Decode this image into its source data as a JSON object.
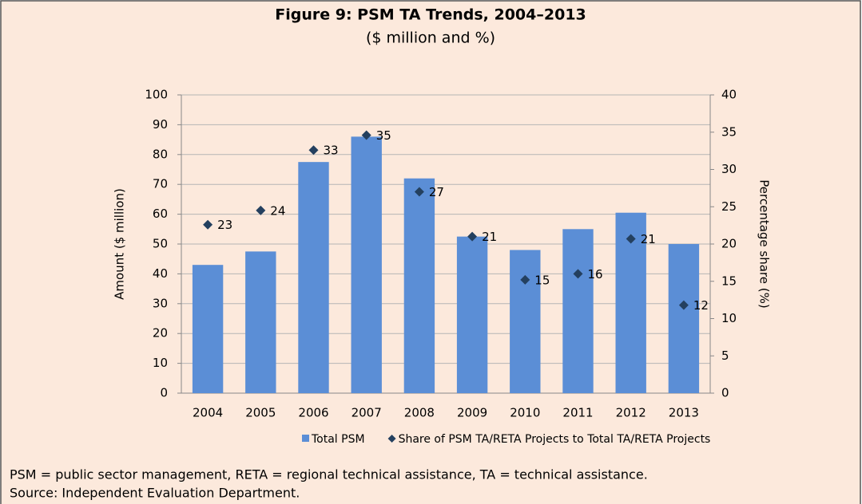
{
  "chart_data": {
    "type": "bar",
    "title": "Figure 9: PSM TA Trends, 2004–2013",
    "subtitle": "($ million and %)",
    "ylabel": "Amount ($ million)",
    "y2label": "Percentage share (%)",
    "categories": [
      "2004",
      "2005",
      "2006",
      "2007",
      "2008",
      "2009",
      "2010",
      "2011",
      "2012",
      "2013"
    ],
    "series": [
      {
        "name": "Total PSM",
        "type": "bar",
        "color": "#5b8ed6",
        "values": [
          43,
          47.5,
          77.5,
          86,
          72,
          52.5,
          48,
          55,
          60.5,
          50
        ]
      },
      {
        "name": "Share of PSM TA/RETA Projects to Total TA/RETA Projects",
        "type": "scatter",
        "axis": "y2",
        "color": "#24405f",
        "values": [
          22.6,
          24.5,
          32.6,
          34.6,
          27,
          21,
          15.2,
          16,
          20.7,
          11.8
        ],
        "value_labels": [
          "23",
          "24",
          "33",
          "35",
          "27",
          "21",
          "15",
          "16",
          "21",
          "12"
        ]
      }
    ],
    "ylim": [
      0,
      100
    ],
    "yticks": [
      0,
      10,
      20,
      30,
      40,
      50,
      60,
      70,
      80,
      90,
      100
    ],
    "y2lim": [
      0,
      40
    ],
    "y2ticks": [
      0,
      5,
      10,
      15,
      20,
      25,
      30,
      35,
      40
    ],
    "grid": true
  },
  "notes": [
    "PSM = public sector management, RETA = regional technical assistance, TA = technical assistance.",
    "Source: Independent Evaluation Department."
  ]
}
